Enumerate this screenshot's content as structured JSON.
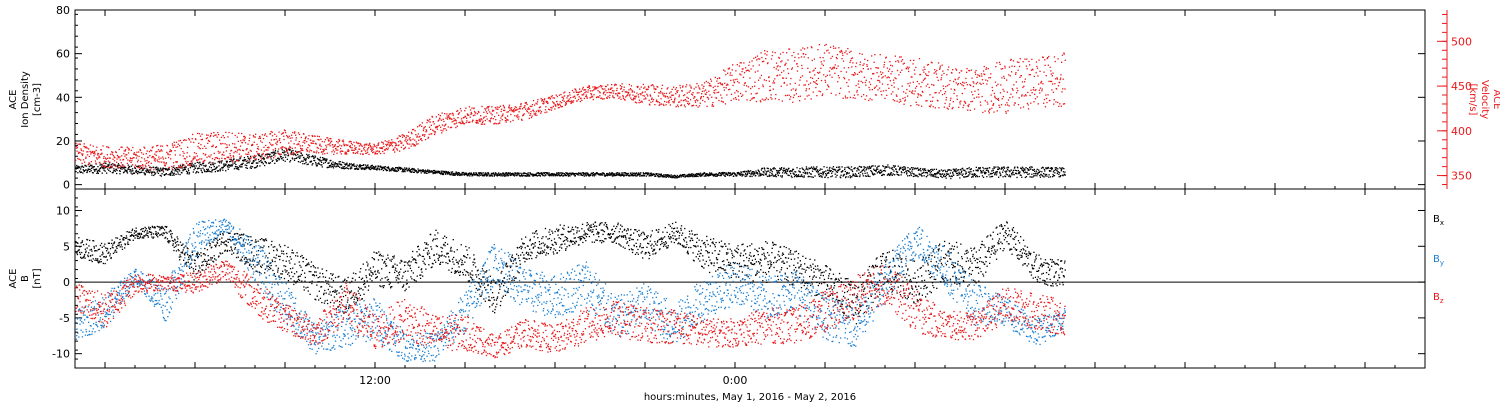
{
  "footer_label": "hours:minutes, May  1, 2016 - May  2, 2016",
  "chart_data": [
    {
      "type": "scatter",
      "panel": "top",
      "x_unit": "hours since May 1, 2016 00:00",
      "xlim": [
        2.0,
        47.0
      ],
      "x_tick_labels": [
        "12:00",
        "0:00"
      ],
      "left_axis": {
        "label_lines": [
          "ACE",
          "Ion Density",
          "[cm-3]"
        ],
        "ylim": [
          -2,
          80
        ],
        "ticks": [
          0,
          20,
          40,
          60,
          80
        ],
        "color": "#000000"
      },
      "right_axis": {
        "label_lines": [
          "ACE",
          "Velocity",
          "[km/s]"
        ],
        "ylim": [
          335,
          535
        ],
        "ticks": [
          350,
          400,
          450,
          500
        ],
        "color": "#e8191b"
      },
      "series": [
        {
          "name": "Ion Density",
          "axis": "left",
          "color": "#000000",
          "x": [
            2.0,
            3.0,
            4.0,
            5.0,
            6.0,
            7.0,
            8.0,
            9.0,
            10.0,
            11.0,
            12.0,
            13.0,
            14.0,
            15.0,
            16.0,
            17.0,
            18.0,
            19.0,
            20.0,
            21.0,
            22.0,
            23.0,
            24.0,
            25.0,
            26.0,
            27.0,
            28.0,
            29.0,
            30.0,
            31.0,
            32.0,
            33.0,
            34.0,
            35.0
          ],
          "y": [
            7,
            8,
            7,
            6,
            8,
            9,
            11,
            14,
            11,
            9,
            8,
            7,
            6,
            5,
            5,
            5,
            5,
            5,
            5,
            5,
            4,
            5,
            5,
            6,
            6,
            6,
            6,
            7,
            6,
            5,
            6,
            6,
            6,
            6
          ],
          "jitter": [
            2.0,
            2.5,
            2.0,
            2.0,
            2.5,
            2.5,
            3.0,
            3.0,
            2.5,
            1.5,
            1.0,
            1.0,
            0.8,
            0.8,
            0.8,
            0.8,
            0.8,
            0.8,
            0.8,
            0.8,
            0.6,
            0.8,
            1.0,
            2.0,
            2.5,
            2.5,
            2.5,
            2.5,
            2.0,
            2.0,
            2.5,
            2.5,
            2.5,
            2.0
          ]
        },
        {
          "name": "Velocity",
          "axis": "right",
          "color": "#e8191b",
          "x": [
            2.0,
            3.0,
            4.0,
            5.0,
            6.0,
            7.0,
            8.0,
            9.0,
            10.0,
            11.0,
            12.0,
            13.0,
            14.0,
            15.0,
            16.0,
            17.0,
            18.0,
            19.0,
            20.0,
            21.0,
            22.0,
            23.0,
            24.0,
            25.0,
            26.0,
            27.0,
            28.0,
            29.0,
            30.0,
            31.0,
            32.0,
            33.0,
            34.0,
            35.0
          ],
          "y": [
            375,
            372,
            370,
            371,
            380,
            383,
            382,
            388,
            385,
            382,
            380,
            388,
            408,
            418,
            418,
            423,
            433,
            443,
            445,
            442,
            439,
            441,
            455,
            463,
            462,
            470,
            462,
            460,
            455,
            450,
            446,
            450,
            455,
            458
          ],
          "jitter": [
            12,
            12,
            12,
            15,
            18,
            18,
            15,
            15,
            10,
            8,
            6,
            10,
            12,
            10,
            10,
            10,
            8,
            8,
            8,
            12,
            12,
            15,
            22,
            30,
            30,
            30,
            28,
            25,
            28,
            25,
            25,
            30,
            28,
            30
          ]
        }
      ]
    },
    {
      "type": "scatter",
      "panel": "bottom",
      "x_unit": "hours since May 1, 2016 00:00",
      "xlim": [
        2.0,
        47.0
      ],
      "x_tick_labels": [
        "12:00",
        "0:00"
      ],
      "left_axis": {
        "label_lines": [
          "ACE",
          "B",
          "[nT]"
        ],
        "ylim": [
          -12,
          13
        ],
        "ticks": [
          -10,
          -5,
          0,
          5,
          10
        ]
      },
      "series": [
        {
          "name": "Bx",
          "label_main": "B",
          "label_sub": "x",
          "color": "#000000",
          "x": [
            2.0,
            3.0,
            4.0,
            5.0,
            6.0,
            7.0,
            8.0,
            9.0,
            10.0,
            11.0,
            12.0,
            13.0,
            14.0,
            15.0,
            16.0,
            17.0,
            18.0,
            19.0,
            20.0,
            21.0,
            22.0,
            23.0,
            24.0,
            25.0,
            26.0,
            27.0,
            28.0,
            29.0,
            30.0,
            31.0,
            32.0,
            33.0,
            34.0,
            35.0
          ],
          "y": [
            5,
            4,
            7,
            7,
            2,
            6,
            4,
            3,
            0,
            -2,
            2,
            1,
            5,
            3,
            -2,
            5,
            6,
            7,
            7,
            5,
            7,
            4,
            3,
            3,
            2,
            0,
            -3,
            2,
            0,
            3,
            2,
            7,
            2,
            1
          ],
          "jitter": [
            1.5,
            1.5,
            0.8,
            1.0,
            2.0,
            1.5,
            2.5,
            2.5,
            2.5,
            2.5,
            2.5,
            2.5,
            2.5,
            2.5,
            2.5,
            2.0,
            2.0,
            1.5,
            1.5,
            2.0,
            1.5,
            2.5,
            2.5,
            3.0,
            2.5,
            2.5,
            3.0,
            3.0,
            3.0,
            3.0,
            3.0,
            2.0,
            2.0,
            2.0
          ]
        },
        {
          "name": "By",
          "label_main": "B",
          "label_sub": "y",
          "color": "#1b7fd1",
          "x": [
            2.0,
            3.0,
            4.0,
            5.0,
            6.0,
            7.0,
            8.0,
            9.0,
            10.0,
            11.0,
            12.0,
            13.0,
            14.0,
            15.0,
            16.0,
            17.0,
            18.0,
            19.0,
            20.0,
            21.0,
            22.0,
            23.0,
            24.0,
            25.0,
            26.0,
            27.0,
            28.0,
            29.0,
            30.0,
            31.0,
            32.0,
            33.0,
            34.0,
            35.0
          ],
          "y": [
            -6,
            -4,
            1,
            -3,
            6,
            8,
            3,
            -3,
            -8,
            -6,
            -5,
            -9,
            -9,
            -4,
            3,
            -1,
            -2,
            0,
            -5,
            -3,
            -6,
            -2,
            0,
            -2,
            -1,
            -5,
            -6,
            0,
            6,
            2,
            -3,
            -4,
            -7,
            -5
          ],
          "jitter": [
            2.0,
            2.5,
            1.0,
            2.5,
            2.5,
            1.0,
            3.0,
            3.0,
            2.0,
            3.0,
            3.0,
            2.0,
            2.0,
            3.0,
            3.0,
            3.0,
            3.0,
            3.5,
            3.0,
            3.0,
            3.0,
            3.0,
            3.0,
            3.0,
            3.0,
            3.0,
            3.0,
            3.0,
            2.5,
            3.0,
            3.0,
            2.0,
            2.0,
            1.5
          ]
        },
        {
          "name": "Bz",
          "label_main": "B",
          "label_sub": "z",
          "color": "#e8191b",
          "x": [
            2.0,
            3.0,
            4.0,
            5.0,
            6.0,
            7.0,
            8.0,
            9.0,
            10.0,
            11.0,
            12.0,
            13.0,
            14.0,
            15.0,
            16.0,
            17.0,
            18.0,
            19.0,
            20.0,
            21.0,
            22.0,
            23.0,
            24.0,
            25.0,
            26.0,
            27.0,
            28.0,
            29.0,
            30.0,
            31.0,
            32.0,
            33.0,
            34.0,
            35.0
          ],
          "y": [
            -2,
            -4,
            0,
            0,
            0,
            2,
            -2,
            -5,
            -7,
            -3,
            -7,
            -5,
            -7,
            -7,
            -9,
            -7,
            -8,
            -6,
            -5,
            -6,
            -6,
            -7,
            -7,
            -6,
            -6,
            -4,
            -2,
            0,
            -4,
            -6,
            -6,
            -3,
            -4,
            -5
          ],
          "jitter": [
            2.0,
            2.5,
            1.5,
            1.0,
            1.5,
            1.5,
            2.5,
            2.0,
            2.0,
            3.0,
            2.5,
            3.0,
            2.5,
            2.5,
            1.5,
            2.0,
            2.0,
            2.5,
            2.5,
            2.5,
            2.5,
            2.0,
            2.0,
            2.5,
            2.5,
            3.0,
            3.0,
            3.0,
            3.0,
            2.0,
            2.0,
            2.5,
            2.5,
            2.5
          ]
        }
      ]
    }
  ]
}
